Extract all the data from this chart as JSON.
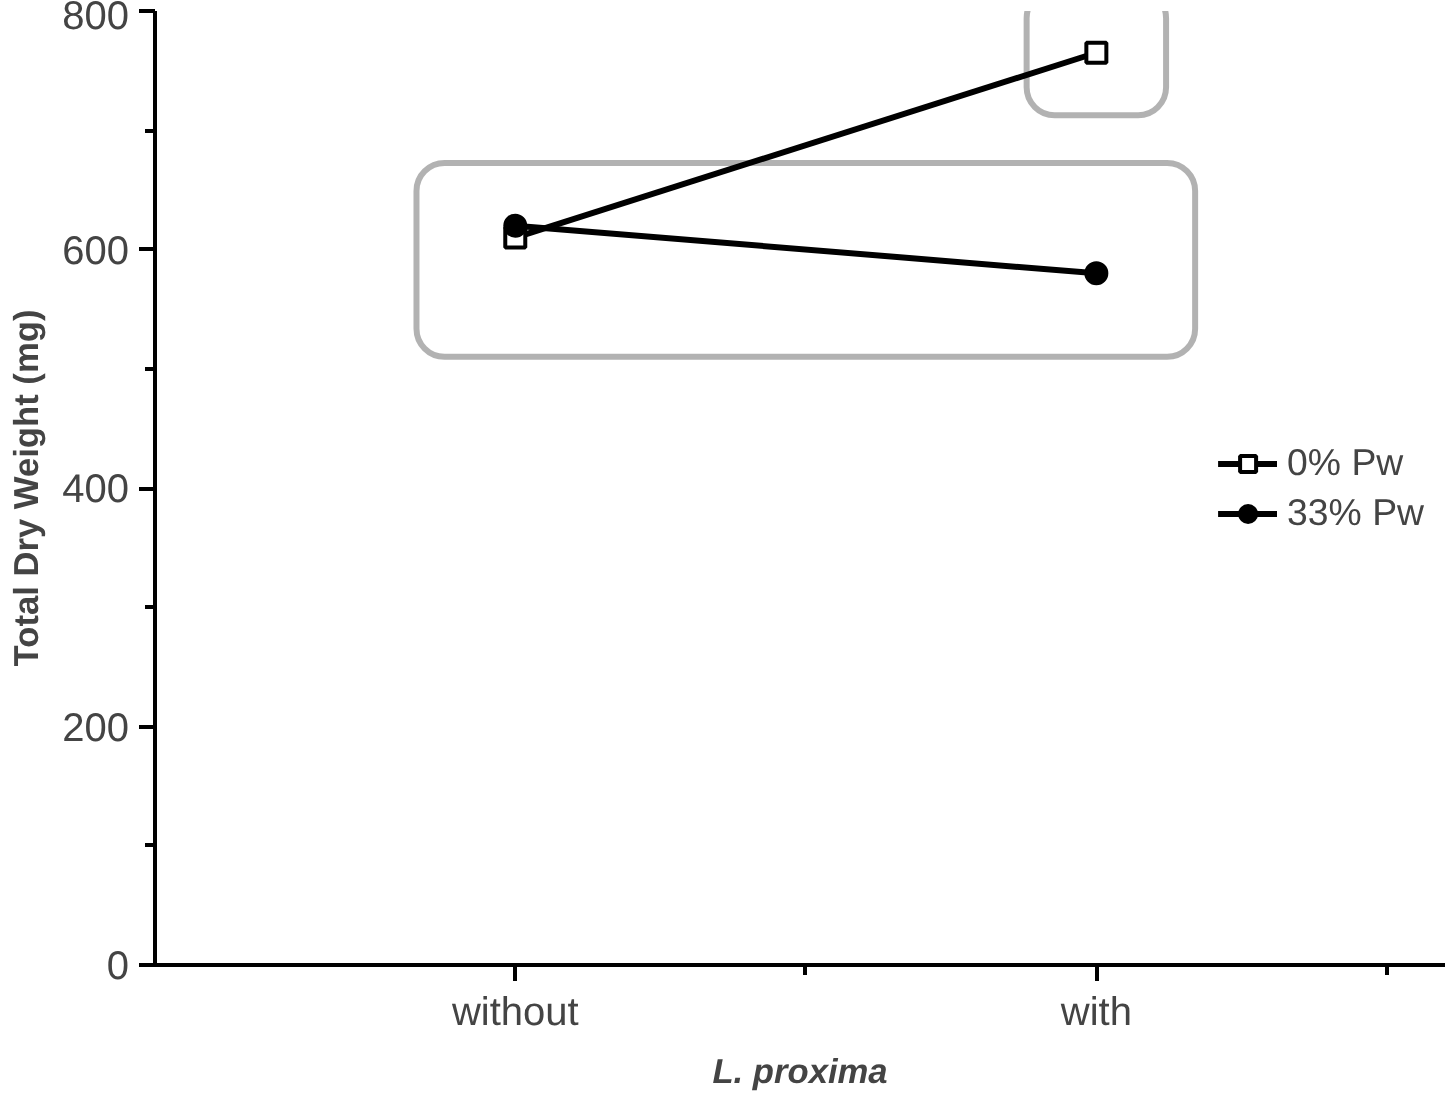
{
  "chart_data": {
    "type": "line",
    "xlabel": "L. proxima",
    "ylabel": "Total Dry Weight (mg)",
    "categories": [
      "without",
      "with"
    ],
    "series": [
      {
        "name": "0% Pw",
        "color": "#000000",
        "marker": "square",
        "values": [
          610,
          765
        ]
      },
      {
        "name": "33% Pw",
        "color": "#000000",
        "marker": "circle",
        "values": [
          620,
          580
        ]
      }
    ],
    "ylim": [
      0,
      800
    ],
    "yticks": [
      0,
      200,
      400,
      600,
      800
    ],
    "grid": false,
    "legend": "right",
    "line_style": "solid"
  }
}
